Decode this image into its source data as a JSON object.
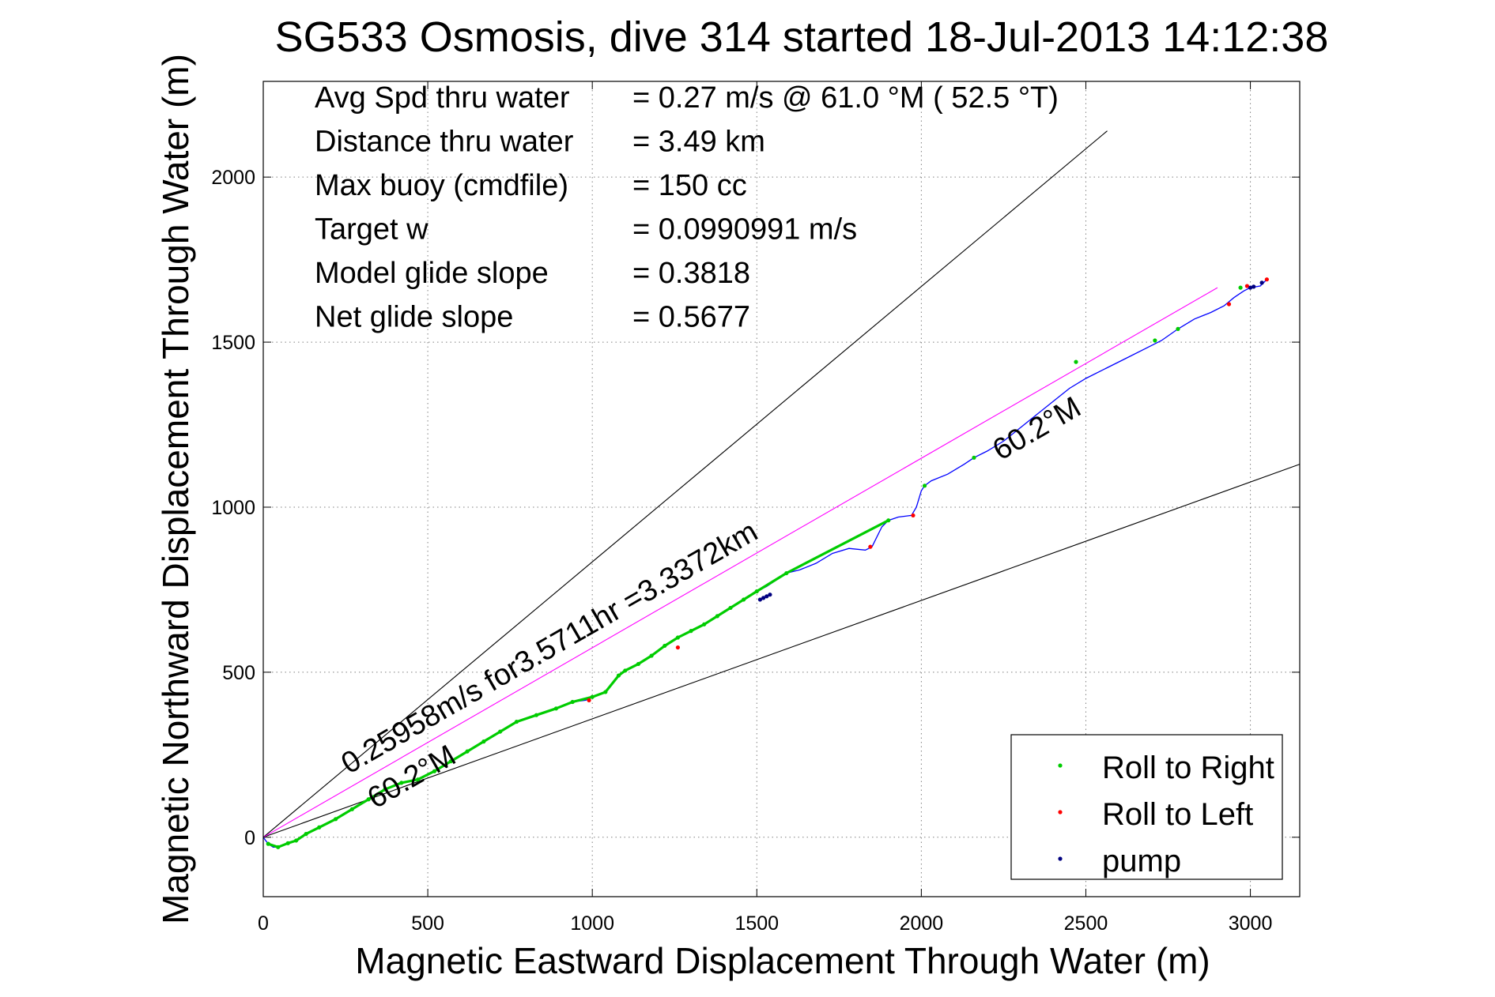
{
  "chart_data": {
    "type": "line",
    "title": "SG533 Osmosis, dive 314 started 18-Jul-2013 14:12:38",
    "xlabel": "Magnetic Eastward Displacement Through Water (m)",
    "ylabel": "Magnetic Northward Displacement Through Water (m)",
    "xlim": [
      0,
      3150
    ],
    "ylim": [
      -180,
      2290
    ],
    "xticks": [
      0,
      500,
      1000,
      1500,
      2000,
      2500,
      3000
    ],
    "yticks": [
      0,
      500,
      1000,
      1500,
      2000
    ],
    "grid": true,
    "legend_position": "bottom-right",
    "stats": [
      {
        "label": "Avg Spd thru water",
        "value": "=  0.27 m/s @  61.0 °M ( 52.5 °T)"
      },
      {
        "label": "Distance thru water",
        "value": "=  3.49 km"
      },
      {
        "label": "Max buoy (cmdfile)",
        "value": "= 150 cc"
      },
      {
        "label": "Target w",
        "value": "= 0.0990991 m/s"
      },
      {
        "label": "Model glide slope",
        "value": "= 0.3818"
      },
      {
        "label": "Net glide slope",
        "value": "= 0.5677"
      }
    ],
    "annotations": {
      "upper_label": "0.25958m/s for3.5711hr =3.3372km",
      "lower_label": "60.2°M",
      "track_label": "60.2°M"
    },
    "reference_lines": [
      {
        "name": "model-glide-cone-upper",
        "color": "#000000",
        "points": [
          [
            0,
            0
          ],
          [
            2565,
            2140
          ]
        ]
      },
      {
        "name": "model-glide-cone-lower",
        "color": "#000000",
        "points": [
          [
            0,
            0
          ],
          [
            3150,
            1130
          ]
        ]
      },
      {
        "name": "heading-line",
        "color": "#ff00ff",
        "points": [
          [
            0,
            0
          ],
          [
            2900,
            1665
          ]
        ]
      }
    ],
    "series": [
      {
        "name": "track",
        "color": "#0000ff",
        "x": [
          0,
          15,
          30,
          45,
          60,
          75,
          100,
          130,
          170,
          220,
          270,
          320,
          370,
          420,
          470,
          520,
          570,
          620,
          670,
          720,
          770,
          830,
          890,
          940,
          980,
          1000,
          1040,
          1080,
          1100,
          1140,
          1180,
          1220,
          1260,
          1300,
          1340,
          1380,
          1420,
          1460,
          1500,
          1530,
          1560,
          1590,
          1630,
          1680,
          1730,
          1780,
          1830,
          1850,
          1880,
          1900,
          1930,
          1970,
          1985,
          2000,
          2010,
          2030,
          2080,
          2130,
          2160,
          2200,
          2250,
          2300,
          2350,
          2400,
          2450,
          2500,
          2560,
          2620,
          2680,
          2730,
          2780,
          2830,
          2880,
          2920,
          2950,
          2980,
          3000,
          3030,
          3050
        ],
        "y": [
          0,
          -20,
          -30,
          -30,
          -25,
          -18,
          -10,
          10,
          30,
          55,
          85,
          115,
          145,
          165,
          175,
          200,
          230,
          260,
          290,
          320,
          350,
          370,
          390,
          410,
          415,
          425,
          440,
          490,
          505,
          525,
          550,
          580,
          605,
          625,
          645,
          670,
          695,
          720,
          745,
          760,
          780,
          800,
          810,
          830,
          860,
          875,
          870,
          880,
          940,
          960,
          970,
          975,
          1000,
          1050,
          1065,
          1080,
          1100,
          1130,
          1150,
          1170,
          1200,
          1240,
          1280,
          1320,
          1360,
          1390,
          1420,
          1450,
          1480,
          1505,
          1540,
          1570,
          1590,
          1610,
          1635,
          1655,
          1665,
          1670,
          1690
        ]
      },
      {
        "name": "Roll to Right",
        "color": "#00cc00",
        "x": [
          15,
          45,
          75,
          100,
          130,
          170,
          220,
          270,
          320,
          370,
          420,
          470,
          520,
          570,
          620,
          670,
          720,
          770,
          830,
          890,
          940,
          1000,
          1040,
          1080,
          1100,
          1140,
          1180,
          1220,
          1260,
          1300,
          1340,
          1380,
          1420,
          1460,
          1500,
          1590,
          1900,
          2010,
          2160,
          2470,
          2710,
          2780,
          2970
        ],
        "y": [
          -20,
          -30,
          -18,
          -10,
          10,
          30,
          55,
          85,
          115,
          145,
          165,
          175,
          200,
          230,
          260,
          290,
          320,
          350,
          370,
          390,
          410,
          425,
          440,
          490,
          505,
          525,
          550,
          580,
          605,
          625,
          645,
          670,
          695,
          720,
          745,
          800,
          960,
          1065,
          1150,
          1440,
          1505,
          1540,
          1665
        ]
      },
      {
        "name": "Roll to Left",
        "color": "#ff0000",
        "x": [
          990,
          1260,
          1845,
          1975,
          2935,
          2990,
          3050
        ],
        "y": [
          415,
          575,
          880,
          975,
          1615,
          1670,
          1690
        ]
      },
      {
        "name": "pump",
        "color": "#000080",
        "x": [
          1510,
          1520,
          1530,
          1540,
          3000,
          3010,
          3035
        ],
        "y": [
          720,
          725,
          730,
          735,
          1665,
          1668,
          1680
        ]
      }
    ],
    "legend": [
      {
        "label": "Roll to Right",
        "color": "#00cc00"
      },
      {
        "label": "Roll to Left",
        "color": "#ff0000"
      },
      {
        "label": "pump",
        "color": "#000080"
      }
    ]
  }
}
